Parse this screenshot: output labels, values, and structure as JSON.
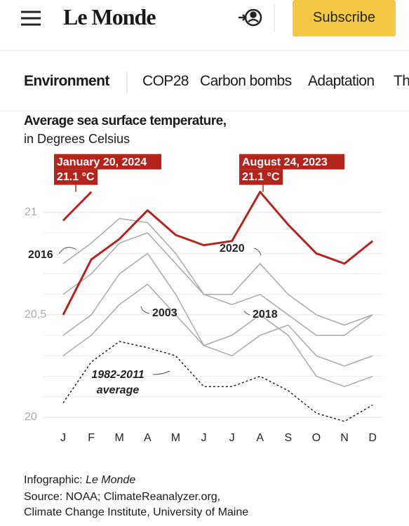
{
  "header": {
    "logo": "Le Monde",
    "button": "Subscribe"
  },
  "nav": {
    "items": [
      "Environment",
      "COP28",
      "Carbon bombs",
      "Adaptation",
      "Th"
    ]
  },
  "chart_data": {
    "type": "line",
    "title": "Average sea surface temperature,",
    "subtitle": "in Degrees Celsius",
    "categories": [
      "J",
      "F",
      "M",
      "A",
      "M",
      "J",
      "J",
      "A",
      "S",
      "O",
      "N",
      "D"
    ],
    "ylim": [
      19.95,
      21.15
    ],
    "yticks": [
      20,
      {
        "value": 20.5,
        "label": "20,5"
      },
      21
    ],
    "yminorticks": [
      20.1,
      20.2,
      20.3,
      20.4,
      20.6,
      20.7,
      20.8,
      20.9
    ],
    "grid": true,
    "series": [
      {
        "name": "2016",
        "color": "#a8a8a8",
        "values": [
          20.75,
          20.85,
          20.97,
          20.95,
          20.8,
          20.6,
          20.55,
          20.6,
          20.5,
          20.4,
          20.4,
          20.5
        ]
      },
      {
        "name": "2020",
        "color": "#a8a8a8",
        "values": [
          20.6,
          20.7,
          20.85,
          20.9,
          20.75,
          20.6,
          20.6,
          20.75,
          20.6,
          20.5,
          20.45,
          20.5
        ]
      },
      {
        "name": "2003",
        "color": "#a8a8a8",
        "values": [
          20.4,
          20.5,
          20.7,
          20.8,
          20.6,
          20.35,
          20.3,
          20.4,
          20.45,
          20.3,
          20.25,
          20.3
        ]
      },
      {
        "name": "2018",
        "color": "#a8a8a8",
        "values": [
          20.3,
          20.4,
          20.55,
          20.65,
          20.5,
          20.35,
          20.4,
          20.5,
          20.4,
          20.2,
          20.15,
          20.2
        ]
      },
      {
        "name": "1982-2011 average",
        "color": "#222222",
        "style": "dashed",
        "values": [
          20.07,
          20.27,
          20.37,
          20.34,
          20.3,
          20.15,
          20.15,
          20.2,
          20.13,
          20.02,
          19.98,
          20.06
        ]
      },
      {
        "name": "2023",
        "color": "#b3241c",
        "values": [
          20.5,
          20.77,
          20.87,
          21.01,
          20.89,
          20.84,
          20.86,
          21.1,
          20.94,
          20.8,
          20.75,
          20.86
        ]
      },
      {
        "name": "2024",
        "color": "#b3241c",
        "values": [
          20.96,
          21.1,
          null,
          null,
          null,
          null,
          null,
          null,
          null,
          null,
          null,
          null
        ]
      }
    ],
    "annotations": [
      {
        "date": "January 20, 2024",
        "value": 21.1,
        "label": "21.1 °C"
      },
      {
        "date": "August 24, 2023",
        "value": 21.1,
        "label": "21.1 °C"
      }
    ]
  },
  "footer": {
    "credit_prefix": "Infographic:",
    "credit_name": "Le Monde",
    "source_line1": "Source: NOAA; ClimateReanalyzer.org,",
    "source_line2": "Climate Change Institute, University of Maine"
  }
}
